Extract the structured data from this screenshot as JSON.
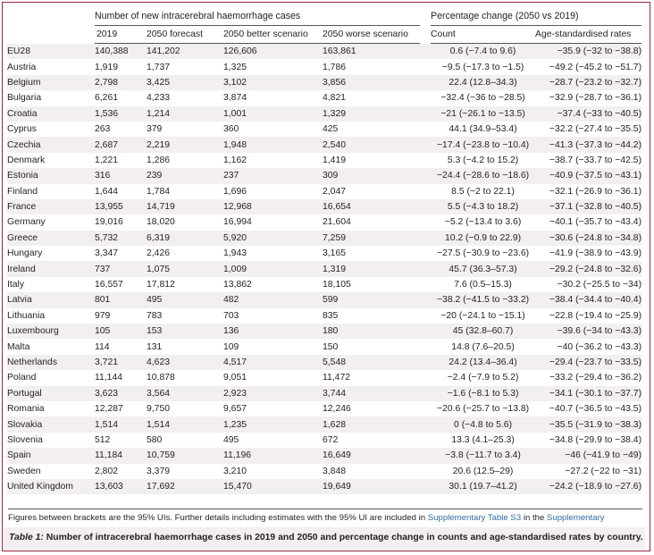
{
  "header": {
    "group_cases": "Number of new intracerebral haemorrhage cases",
    "group_change": "Percentage change (2050 vs 2019)",
    "columns": [
      "2019",
      "2050 forecast",
      "2050 better scenario",
      "2050 worse scenario",
      "Count",
      "Age-standardised rates"
    ]
  },
  "rows": [
    {
      "country": "EU28",
      "y2019": "140,388",
      "forecast": "141,202",
      "better": "126,606",
      "worse": "163,861",
      "count": "0.6 (−7.4 to 9.6)",
      "age": "−35.9 (−32 to −38.8)"
    },
    {
      "country": "Austria",
      "y2019": "1,919",
      "forecast": "1,737",
      "better": "1,325",
      "worse": "1,786",
      "count": "−9.5 (−17.3 to −1.5)",
      "age": "−49.2 (−45.2 to −51.7)"
    },
    {
      "country": "Belgium",
      "y2019": "2,798",
      "forecast": "3,425",
      "better": "3,102",
      "worse": "3,856",
      "count": "22.4 (12.8–34.3)",
      "age": "−28.7 (−23.2 to −32.7)"
    },
    {
      "country": "Bulgaria",
      "y2019": "6,261",
      "forecast": "4,233",
      "better": "3,874",
      "worse": "4,821",
      "count": "−32.4 (−36 to −28.5)",
      "age": "−32.9 (−28.7 to −36.1)"
    },
    {
      "country": "Croatia",
      "y2019": "1,536",
      "forecast": "1,214",
      "better": "1,001",
      "worse": "1,329",
      "count": "−21 (−26.1 to −13.5)",
      "age": "−37.4 (−33 to −40.5)"
    },
    {
      "country": "Cyprus",
      "y2019": "263",
      "forecast": "379",
      "better": "360",
      "worse": "425",
      "count": "44.1 (34.9–53.4)",
      "age": "−32.2 (−27.4 to −35.5)"
    },
    {
      "country": "Czechia",
      "y2019": "2,687",
      "forecast": "2,219",
      "better": "1,948",
      "worse": "2,540",
      "count": "−17.4 (−23.8 to −10.4)",
      "age": "−41.3 (−37.3 to −44.2)"
    },
    {
      "country": "Denmark",
      "y2019": "1,221",
      "forecast": "1,286",
      "better": "1,162",
      "worse": "1,419",
      "count": "5.3 (−4.2 to 15.2)",
      "age": "−38.7 (−33.7 to −42.5)"
    },
    {
      "country": "Estonia",
      "y2019": "316",
      "forecast": "239",
      "better": "237",
      "worse": "309",
      "count": "−24.4 (−28.6 to −18.6)",
      "age": "−40.9 (−37.5 to −43.1)"
    },
    {
      "country": "Finland",
      "y2019": "1,644",
      "forecast": "1,784",
      "better": "1,696",
      "worse": "2,047",
      "count": "8.5 (−2 to 22.1)",
      "age": "−32.1 (−26.9 to −36.1)"
    },
    {
      "country": "France",
      "y2019": "13,955",
      "forecast": "14,719",
      "better": "12,968",
      "worse": "16,654",
      "count": "5.5 (−4.3 to 18.2)",
      "age": "−37.1 (−32.8 to −40.5)"
    },
    {
      "country": "Germany",
      "y2019": "19,016",
      "forecast": "18,020",
      "better": "16,994",
      "worse": "21,604",
      "count": "−5.2 (−13.4 to 3.6)",
      "age": "−40.1 (−35.7 to −43.4)"
    },
    {
      "country": "Greece",
      "y2019": "5,732",
      "forecast": "6,319",
      "better": "5,920",
      "worse": "7,259",
      "count": "10.2 (−0.9 to 22.9)",
      "age": "−30.6 (−24.8 to −34.8)"
    },
    {
      "country": "Hungary",
      "y2019": "3,347",
      "forecast": "2,426",
      "better": "1,943",
      "worse": "3,165",
      "count": "−27.5 (−30.9 to −23.6)",
      "age": "−41.9 (−38.9 to −43.9)"
    },
    {
      "country": "Ireland",
      "y2019": "737",
      "forecast": "1,075",
      "better": "1,009",
      "worse": "1,319",
      "count": "45.7 (36.3–57.3)",
      "age": "−29.2 (−24.8 to −32.6)"
    },
    {
      "country": "Italy",
      "y2019": "16,557",
      "forecast": "17,812",
      "better": "13,862",
      "worse": "18,105",
      "count": "7.6 (0.5–15.3)",
      "age": "−30.2 (−25.5 to −34)"
    },
    {
      "country": "Latvia",
      "y2019": "801",
      "forecast": "495",
      "better": "482",
      "worse": "599",
      "count": "−38.2 (−41.5 to −33.2)",
      "age": "−38.4 (−34.4 to −40.4)"
    },
    {
      "country": "Lithuania",
      "y2019": "979",
      "forecast": "783",
      "better": "703",
      "worse": "835",
      "count": "−20 (−24.1 to −15.1)",
      "age": "−22.8 (−19.4 to −25.9)"
    },
    {
      "country": "Luxembourg",
      "y2019": "105",
      "forecast": "153",
      "better": "136",
      "worse": "180",
      "count": "45 (32.8–60.7)",
      "age": "−39.6 (−34 to −43.3)"
    },
    {
      "country": "Malta",
      "y2019": "114",
      "forecast": "131",
      "better": "109",
      "worse": "150",
      "count": "14.8 (7.6–20.5)",
      "age": "−40 (−36.2 to −43.3)"
    },
    {
      "country": "Netherlands",
      "y2019": "3,721",
      "forecast": "4,623",
      "better": "4,517",
      "worse": "5,548",
      "count": "24.2 (13.4–36.4)",
      "age": "−29.4 (−23.7 to −33.5)"
    },
    {
      "country": "Poland",
      "y2019": "11,144",
      "forecast": "10,878",
      "better": "9,051",
      "worse": "11,472",
      "count": "−2.4 (−7.9 to 5.2)",
      "age": "−33.2 (−29.4 to −36.2)"
    },
    {
      "country": "Portugal",
      "y2019": "3,623",
      "forecast": "3,564",
      "better": "2,923",
      "worse": "3,744",
      "count": "−1.6 (−8.1 to 5.3)",
      "age": "−34.1 (−30.1 to −37.7)"
    },
    {
      "country": "Romania",
      "y2019": "12,287",
      "forecast": "9,750",
      "better": "9,657",
      "worse": "12,246",
      "count": "−20.6 (−25.7 to −13.8)",
      "age": "−40.7 (−36.5 to −43.5)"
    },
    {
      "country": "Slovakia",
      "y2019": "1,514",
      "forecast": "1,514",
      "better": "1,235",
      "worse": "1,628",
      "count": "0 (−4.8 to 5.6)",
      "age": "−35.5 (−31.9 to −38.3)"
    },
    {
      "country": "Slovenia",
      "y2019": "512",
      "forecast": "580",
      "better": "495",
      "worse": "672",
      "count": "13.3 (4.1–25.3)",
      "age": "−34.8 (−29.9 to −38.4)"
    },
    {
      "country": "Spain",
      "y2019": "11,184",
      "forecast": "10,759",
      "better": "11,196",
      "worse": "16,649",
      "count": "−3.8 (−11.7 to 3.4)",
      "age": "−46 (−41.9 to −49)"
    },
    {
      "country": "Sweden",
      "y2019": "2,802",
      "forecast": "3,379",
      "better": "3,210",
      "worse": "3,848",
      "count": "20.6 (12.5–29)",
      "age": "−27.2 (−22 to −31)"
    },
    {
      "country": "United Kingdom",
      "y2019": "13,603",
      "forecast": "17,692",
      "better": "15,470",
      "worse": "19,649",
      "count": "30.1 (19.7–41.2)",
      "age": "−24.2 (−18.9 to −27.6)"
    }
  ],
  "footnote": {
    "text_before": "Figures between brackets are the 95% UIs. Further details including estimates with the 95% UI are included in ",
    "link1": "Supplementary Table S3",
    "text_middle": " in the ",
    "link2": "Supplementary appendix",
    "text_after": "."
  },
  "caption": {
    "label": "Table 1:",
    "text": " Number of intracerebral haemorrhage cases in 2019 and 2050 and percentage change in counts and age-standardised rates by country."
  },
  "colors": {
    "frame": "#9b2740",
    "stripe": "#f2eef1",
    "link": "#2f6da6"
  }
}
